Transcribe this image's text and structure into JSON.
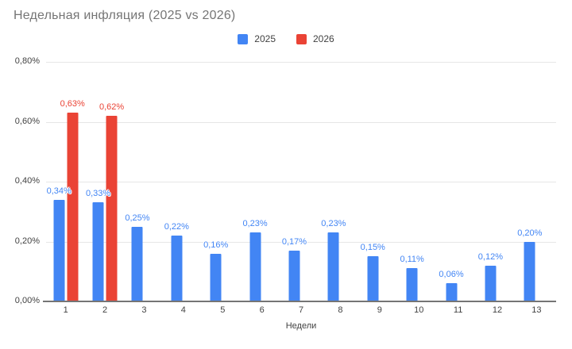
{
  "title": "Недельная инфляция (2025 vs 2026)",
  "legend": {
    "items": [
      {
        "label": "2025",
        "color": "#4285F4"
      },
      {
        "label": "2026",
        "color": "#EA4335"
      }
    ]
  },
  "colors": {
    "series_2025": "#4285F4",
    "series_2026": "#EA4335",
    "title_text": "#757575",
    "axis_text": "#424242",
    "gridline": "#e6e6e6",
    "axis_line": "#757575",
    "background": "#ffffff"
  },
  "chart_data": {
    "type": "bar",
    "title": "Недельная инфляция (2025 vs 2026)",
    "xlabel": "Недели",
    "ylabel": "",
    "categories": [
      "1",
      "2",
      "3",
      "4",
      "5",
      "6",
      "7",
      "8",
      "9",
      "10",
      "11",
      "12",
      "13"
    ],
    "series": [
      {
        "name": "2025",
        "color": "#4285F4",
        "values": [
          0.34,
          0.33,
          0.25,
          0.22,
          0.16,
          0.23,
          0.17,
          0.23,
          0.15,
          0.11,
          0.06,
          0.12,
          0.2
        ],
        "labels": [
          "0,34%",
          "0,33%",
          "0,25%",
          "0,22%",
          "0,16%",
          "0,23%",
          "0,17%",
          "0,23%",
          "0,15%",
          "0,11%",
          "0,06%",
          "0,12%",
          "0,20%"
        ]
      },
      {
        "name": "2026",
        "color": "#EA4335",
        "values": [
          0.63,
          0.62,
          null,
          null,
          null,
          null,
          null,
          null,
          null,
          null,
          null,
          null,
          null
        ],
        "labels": [
          "0,63%",
          "0,62%",
          null,
          null,
          null,
          null,
          null,
          null,
          null,
          null,
          null,
          null,
          null
        ]
      }
    ],
    "ylim": [
      0,
      0.8
    ],
    "yticks": [
      {
        "value": 0.0,
        "label": "0,00%"
      },
      {
        "value": 0.2,
        "label": "0,20%"
      },
      {
        "value": 0.4,
        "label": "0,40%"
      },
      {
        "value": 0.6,
        "label": "0,60%"
      },
      {
        "value": 0.8,
        "label": "0,80%"
      }
    ],
    "grid": true,
    "legend_position": "top",
    "decimal_separator": ","
  }
}
